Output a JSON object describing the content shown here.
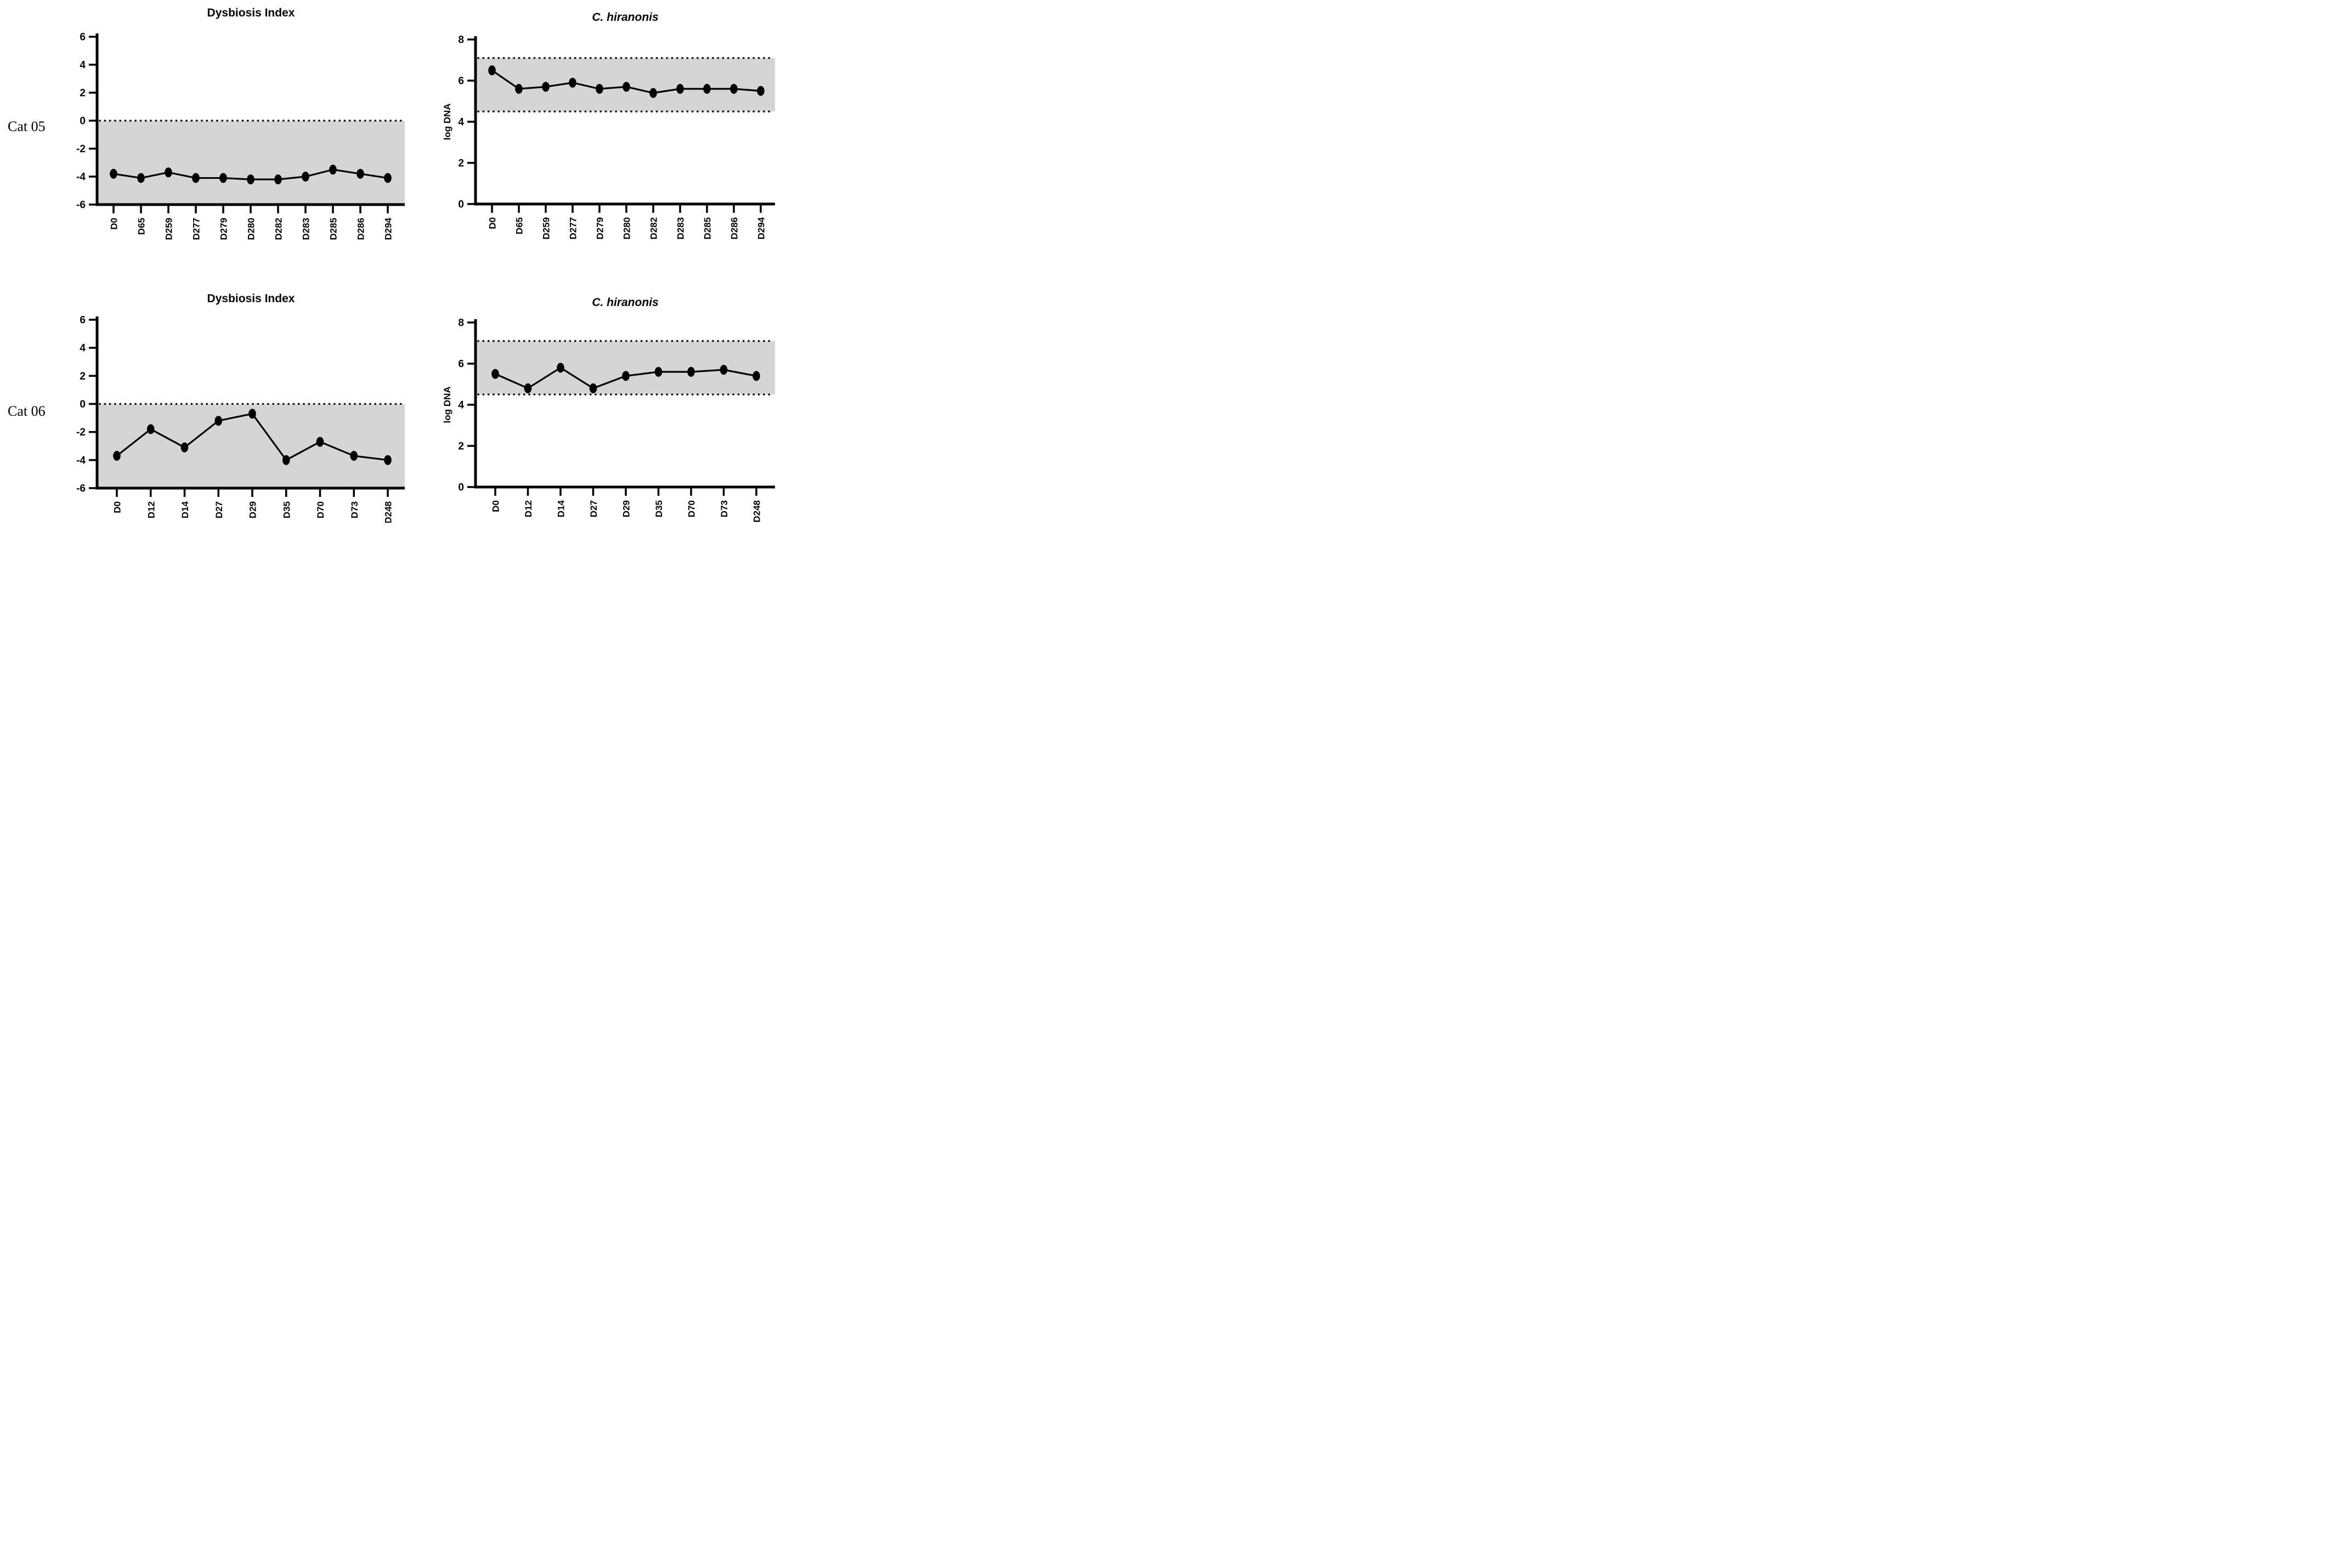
{
  "figure": {
    "rows": [
      {
        "label": "Cat 05"
      },
      {
        "label": "Cat 06"
      }
    ],
    "colors": {
      "band_gray": "#d5d5d5",
      "line_black": "#000000",
      "background": "#ffffff"
    }
  },
  "chart_data": [
    {
      "type": "line",
      "title": "Dysbiosis Index",
      "row": "Cat 05",
      "xlabel": "",
      "ylabel": "",
      "categories": [
        "D0",
        "D65",
        "D259",
        "D277",
        "D279",
        "D280",
        "D282",
        "D283",
        "D285",
        "D286",
        "D294"
      ],
      "values": [
        -3.8,
        -4.1,
        -3.7,
        -4.1,
        -4.1,
        -4.2,
        -4.2,
        -4.0,
        -3.5,
        -3.8,
        -4.1
      ],
      "ylim": [
        -6,
        6
      ],
      "yticks": [
        6,
        4,
        2,
        0,
        -2,
        -4,
        -6
      ],
      "band": {
        "from": -6,
        "to": 0
      },
      "dotted_lines": [
        0
      ],
      "band_color": "#d5d5d5",
      "line_color": "#000000",
      "marker": "filled-black-ellipse",
      "grid": false,
      "legend": false
    },
    {
      "type": "line",
      "title": "C. hiranonis",
      "row": "Cat 05",
      "xlabel": "",
      "ylabel": "log DNA",
      "categories": [
        "D0",
        "D65",
        "D259",
        "D277",
        "D279",
        "D280",
        "D282",
        "D283",
        "D285",
        "D286",
        "D294"
      ],
      "values": [
        6.5,
        5.6,
        5.7,
        5.9,
        5.6,
        5.7,
        5.4,
        5.6,
        5.6,
        5.6,
        5.5
      ],
      "ylim": [
        0,
        8
      ],
      "yticks": [
        8,
        6,
        4,
        2,
        0
      ],
      "band": {
        "from": 4.5,
        "to": 7.1
      },
      "dotted_lines": [
        4.5,
        7.1
      ],
      "band_color": "#d5d5d5",
      "line_color": "#000000",
      "marker": "filled-black-ellipse",
      "grid": false,
      "legend": false
    },
    {
      "type": "line",
      "title": "Dysbiosis Index",
      "row": "Cat 06",
      "xlabel": "",
      "ylabel": "",
      "categories": [
        "D0",
        "D12",
        "D14",
        "D27",
        "D29",
        "D35",
        "D70",
        "D73",
        "D248"
      ],
      "values": [
        -3.7,
        -1.8,
        -3.1,
        -1.2,
        -0.7,
        -4.0,
        -2.7,
        -3.7,
        -4.0
      ],
      "ylim": [
        -6,
        6
      ],
      "yticks": [
        6,
        4,
        2,
        0,
        -2,
        -4,
        -6
      ],
      "band": {
        "from": -6,
        "to": 0
      },
      "dotted_lines": [
        0
      ],
      "band_color": "#d5d5d5",
      "line_color": "#000000",
      "marker": "filled-black-ellipse",
      "grid": false,
      "legend": false
    },
    {
      "type": "line",
      "title": "C. hiranonis",
      "row": "Cat 06",
      "xlabel": "",
      "ylabel": "log DNA",
      "categories": [
        "D0",
        "D12",
        "D14",
        "D27",
        "D29",
        "D35",
        "D70",
        "D73",
        "D248"
      ],
      "values": [
        5.5,
        4.8,
        5.8,
        4.8,
        5.4,
        5.6,
        5.6,
        5.7,
        5.4
      ],
      "ylim": [
        0,
        8
      ],
      "yticks": [
        8,
        6,
        4,
        2,
        0
      ],
      "band": {
        "from": 4.5,
        "to": 7.1
      },
      "dotted_lines": [
        4.5,
        7.1
      ],
      "band_color": "#d5d5d5",
      "line_color": "#000000",
      "marker": "filled-black-ellipse",
      "grid": false,
      "legend": false
    }
  ]
}
